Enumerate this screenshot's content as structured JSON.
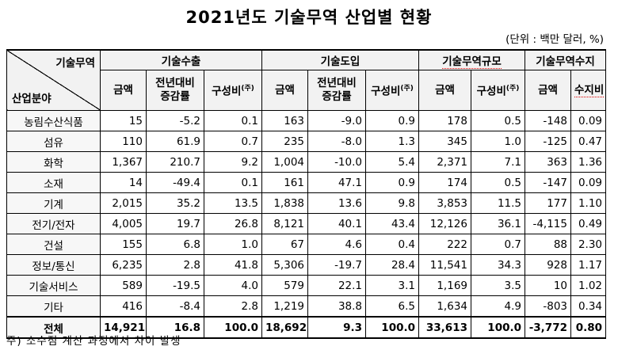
{
  "title": "2021년도 기술무역 산업별 현황",
  "unit": "(단위 : 백만 달러, %)",
  "header": {
    "corner_top": "기술무역",
    "corner_bottom": "산업분야",
    "groups": [
      "기술수출",
      "기술도입",
      "기술무역규모",
      "기술무역수지"
    ],
    "sub": {
      "amount": "금액",
      "yoy_line1": "전년대비",
      "yoy_line2": "증감률",
      "share": "구성비",
      "share_mark": "(주)",
      "balance_ratio": "수지비"
    }
  },
  "rows": [
    {
      "cat": "농림수산식품",
      "ex_amt": "15",
      "ex_yoy": "-5.2",
      "ex_share": "0.1",
      "im_amt": "163",
      "im_yoy": "-9.0",
      "im_share": "0.9",
      "sz_amt": "178",
      "sz_share": "0.5",
      "bal_amt": "-148",
      "bal_ratio": "0.09"
    },
    {
      "cat": "섬유",
      "ex_amt": "110",
      "ex_yoy": "61.9",
      "ex_share": "0.7",
      "im_amt": "235",
      "im_yoy": "-8.0",
      "im_share": "1.3",
      "sz_amt": "345",
      "sz_share": "1.0",
      "bal_amt": "-125",
      "bal_ratio": "0.47"
    },
    {
      "cat": "화학",
      "ex_amt": "1,367",
      "ex_yoy": "210.7",
      "ex_share": "9.2",
      "im_amt": "1,004",
      "im_yoy": "-10.0",
      "im_share": "5.4",
      "sz_amt": "2,371",
      "sz_share": "7.1",
      "bal_amt": "363",
      "bal_ratio": "1.36"
    },
    {
      "cat": "소재",
      "ex_amt": "14",
      "ex_yoy": "-49.4",
      "ex_share": "0.1",
      "im_amt": "161",
      "im_yoy": "47.1",
      "im_share": "0.9",
      "sz_amt": "174",
      "sz_share": "0.5",
      "bal_amt": "-147",
      "bal_ratio": "0.09"
    },
    {
      "cat": "기계",
      "ex_amt": "2,015",
      "ex_yoy": "35.2",
      "ex_share": "13.5",
      "im_amt": "1,838",
      "im_yoy": "13.6",
      "im_share": "9.8",
      "sz_amt": "3,853",
      "sz_share": "11.5",
      "bal_amt": "177",
      "bal_ratio": "1.10"
    },
    {
      "cat": "전기/전자",
      "ex_amt": "4,005",
      "ex_yoy": "19.7",
      "ex_share": "26.8",
      "im_amt": "8,121",
      "im_yoy": "40.1",
      "im_share": "43.4",
      "sz_amt": "12,126",
      "sz_share": "36.1",
      "bal_amt": "-4,115",
      "bal_ratio": "0.49"
    },
    {
      "cat": "건설",
      "ex_amt": "155",
      "ex_yoy": "6.8",
      "ex_share": "1.0",
      "im_amt": "67",
      "im_yoy": "4.6",
      "im_share": "0.4",
      "sz_amt": "222",
      "sz_share": "0.7",
      "bal_amt": "88",
      "bal_ratio": "2.30"
    },
    {
      "cat": "정보/통신",
      "ex_amt": "6,235",
      "ex_yoy": "2.8",
      "ex_share": "41.8",
      "im_amt": "5,306",
      "im_yoy": "-19.7",
      "im_share": "28.4",
      "sz_amt": "11,541",
      "sz_share": "34.3",
      "bal_amt": "928",
      "bal_ratio": "1.17"
    },
    {
      "cat": "기술서비스",
      "ex_amt": "589",
      "ex_yoy": "-19.5",
      "ex_share": "4.0",
      "im_amt": "579",
      "im_yoy": "22.1",
      "im_share": "3.1",
      "sz_amt": "1,169",
      "sz_share": "3.5",
      "bal_amt": "10",
      "bal_ratio": "1.02"
    },
    {
      "cat": "기타",
      "ex_amt": "416",
      "ex_yoy": "-8.4",
      "ex_share": "2.8",
      "im_amt": "1,219",
      "im_yoy": "38.8",
      "im_share": "6.5",
      "sz_amt": "1,634",
      "sz_share": "4.9",
      "bal_amt": "-803",
      "bal_ratio": "0.34"
    }
  ],
  "total": {
    "cat": "전체",
    "ex_amt": "14,921",
    "ex_yoy": "16.8",
    "ex_share": "100.0",
    "im_amt": "18,692",
    "im_yoy": "9.3",
    "im_share": "100.0",
    "sz_amt": "33,613",
    "sz_share": "100.0",
    "bal_amt": "-3,772",
    "bal_ratio": "0.80"
  },
  "note": "주) 소수점 계산 과정에서 차이 발생"
}
